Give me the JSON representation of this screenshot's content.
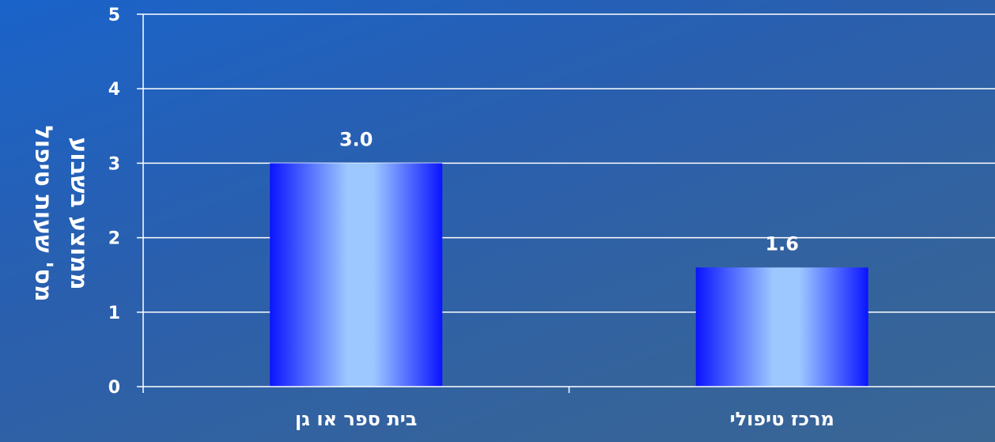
{
  "chart_data": {
    "type": "bar",
    "categories": [
      "בית ספר או גן",
      "מרכז טיפולי"
    ],
    "values": [
      3.0,
      1.6
    ],
    "data_labels": [
      "3.0",
      "1.6"
    ],
    "ylabel_lines": [
      "מס' שעות טיפול",
      "ממוצע בשבוע"
    ],
    "ylim": [
      0,
      5
    ],
    "yticks": [
      "0",
      "1",
      "2",
      "3",
      "4",
      "5"
    ],
    "grid": true,
    "legend": "none"
  },
  "colors": {
    "bar_edge": "#0a14ff",
    "bar_center": "#9cc8ff",
    "axis": "#ffffff",
    "text": "#ffffff"
  }
}
